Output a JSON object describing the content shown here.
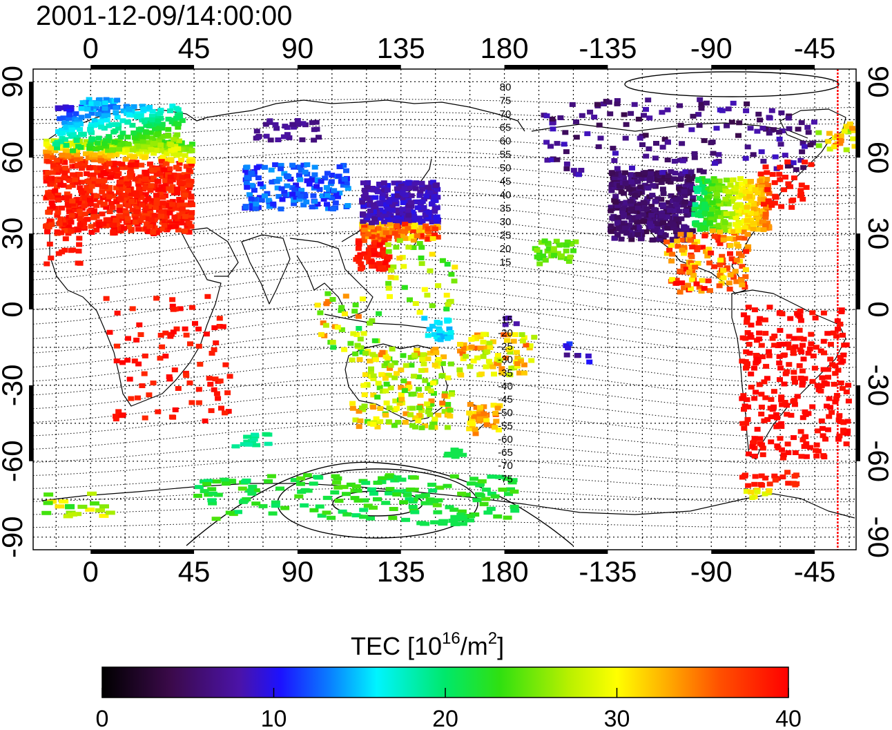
{
  "title": "2001-12-09/14:00:00",
  "top_lon_ticks": [
    "0",
    "45",
    "90",
    "135",
    "180",
    "-135",
    "-90",
    "-45"
  ],
  "bottom_lon_ticks": [
    "0",
    "45",
    "90",
    "135",
    "180",
    "-135",
    "-90",
    "-45"
  ],
  "left_lat_ticks": [
    "90",
    "60",
    "30",
    "0",
    "-30",
    "-60",
    "-90"
  ],
  "right_lat_ticks": [
    "90",
    "60",
    "30",
    "0",
    "-30",
    "-60",
    "-90"
  ],
  "contour_labels_north": [
    "80",
    "75",
    "70",
    "65",
    "60",
    "55",
    "50",
    "45",
    "40",
    "35",
    "30",
    "25",
    "20",
    "15"
  ],
  "contour_labels_south": [
    "-15",
    "-20",
    "-25",
    "-30",
    "-35",
    "-40",
    "-45",
    "-50",
    "-55",
    "-60",
    "-65",
    "-70",
    "-75"
  ],
  "colorbar": {
    "label_main": "TEC  [10",
    "label_sup1": "16",
    "label_mid": "/m",
    "label_sup2": "2",
    "label_end": "]",
    "ticks": [
      "0",
      "10",
      "20",
      "30",
      "40"
    ],
    "min": 0,
    "max": 40
  },
  "map": {
    "lon_range": [
      -25,
      333
    ],
    "lat_range": [
      -95,
      95
    ],
    "terminator_lon": -35,
    "terminator_color": "#ff0000"
  }
}
